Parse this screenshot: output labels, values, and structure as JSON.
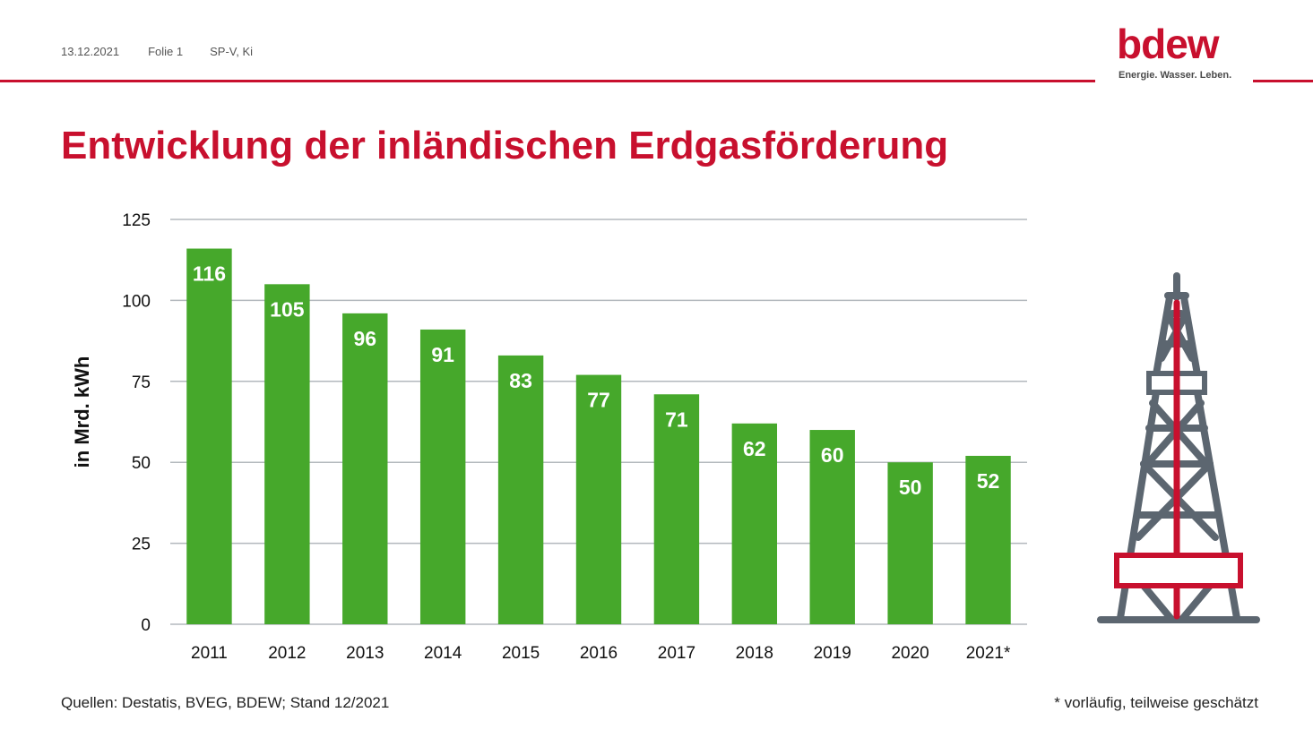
{
  "header": {
    "date": "13.12.2021",
    "slide": "Folie 1",
    "author": "SP-V, Ki"
  },
  "logo": {
    "wordmark": "bdew",
    "tagline": "Energie. Wasser. Leben."
  },
  "title": "Entwicklung der inländischen Erdgasförderung",
  "footer": {
    "sources": "Quellen: Destatis, BVEG, BDEW; Stand 12/2021",
    "note": "* vorläufig, teilweise geschätzt"
  },
  "icons": {
    "rig": "oil-rig-icon"
  },
  "colors": {
    "accent": "#c8102e",
    "bar": "#46a82b",
    "grid": "#b3b8bd",
    "rig_gray": "#5c6670"
  },
  "chart_data": {
    "type": "bar",
    "title": "",
    "xlabel": "",
    "ylabel": "in Mrd. kWh",
    "categories": [
      "2011",
      "2012",
      "2013",
      "2014",
      "2015",
      "2016",
      "2017",
      "2018",
      "2019",
      "2020",
      "2021*"
    ],
    "values": [
      116,
      105,
      96,
      91,
      83,
      77,
      71,
      62,
      60,
      50,
      52
    ],
    "ylim": [
      0,
      125
    ],
    "yticks": [
      0,
      25,
      50,
      75,
      100,
      125
    ],
    "grid": true,
    "data_labels": true
  }
}
